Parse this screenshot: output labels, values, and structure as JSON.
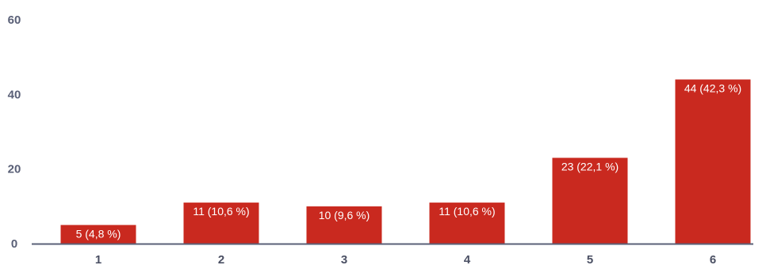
{
  "chart_data": {
    "type": "bar",
    "title": "",
    "xlabel": "",
    "ylabel": "",
    "categories": [
      "1",
      "2",
      "3",
      "4",
      "5",
      "6"
    ],
    "values": [
      5,
      11,
      10,
      11,
      23,
      44
    ],
    "data_labels": [
      "5 (4,8 %)",
      "11 (10,6 %)",
      "10 (9,6 %)",
      "11 (10,6 %)",
      "23 (22,1 %)",
      "44 (42,3 %)"
    ],
    "y_ticks": [
      "0",
      "20",
      "40",
      "60"
    ],
    "ylim": [
      0,
      60
    ],
    "grid": false,
    "legend": "none",
    "bar_color": "#c9291f",
    "axis_color": "#5a6077"
  }
}
